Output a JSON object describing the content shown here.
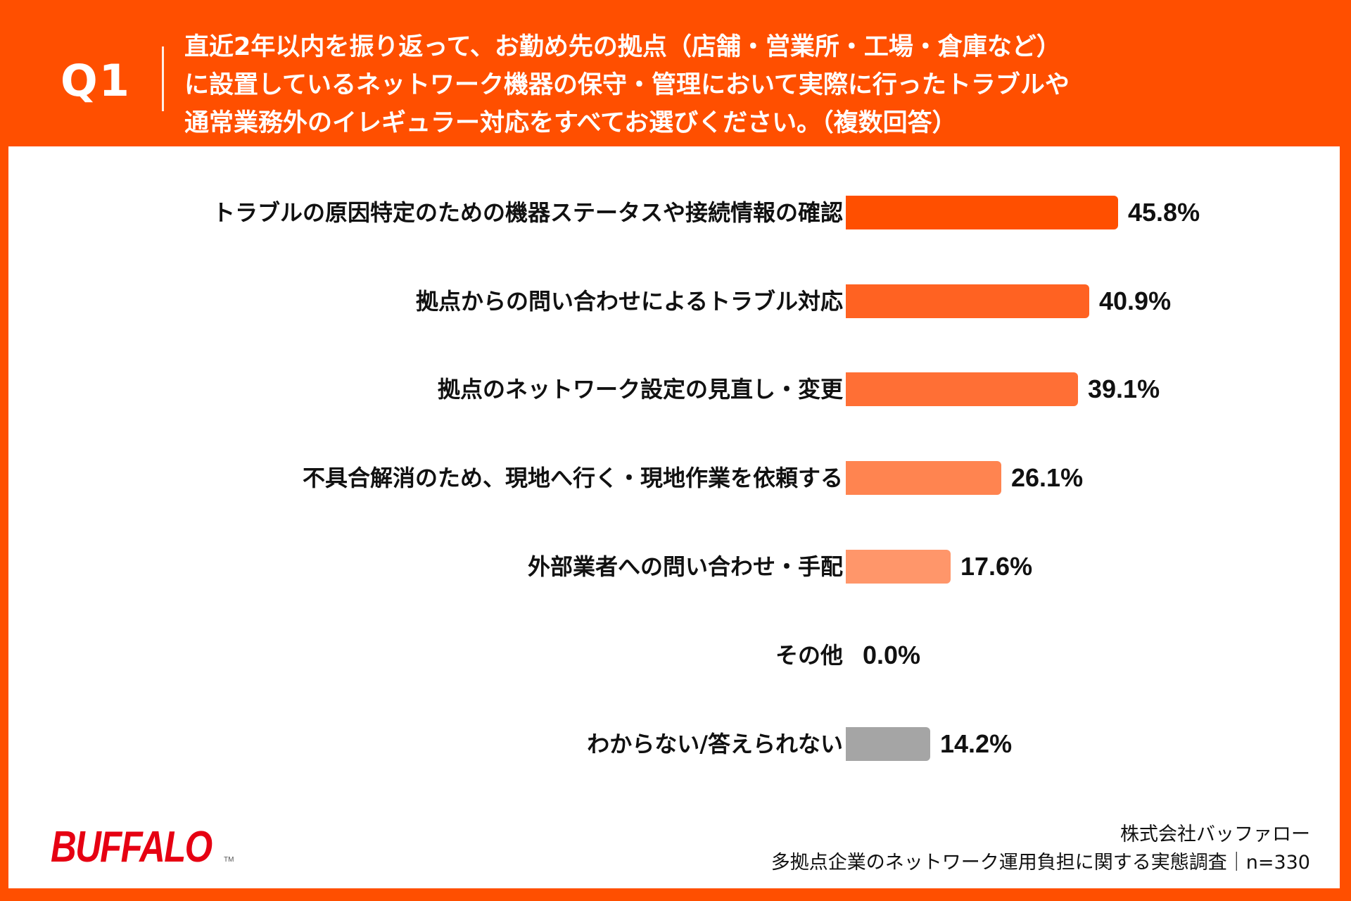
{
  "header": {
    "question_no": "Q1",
    "question_lines": [
      "直近2年以内を振り返って、お勤め先の拠点（店舗・営業所・工場・倉庫など）",
      "に設置しているネットワーク機器の保守・管理において実際に行ったトラブルや",
      "通常業務外のイレギュラー対応をすべてお選びください。（複数回答）"
    ]
  },
  "colors": {
    "frame": "#FF4F00",
    "bar_1": "#FF4F00",
    "bar_2": "#FF6222",
    "bar_3": "#FF6F35",
    "bar_4": "#FF8450",
    "bar_5": "#FF966A",
    "bar_other": "#FF966A",
    "bar_unknown": "#A5A5A5",
    "logo": "#E60012"
  },
  "chart_data": {
    "type": "bar",
    "orientation": "horizontal",
    "title": "直近2年以内を振り返って、お勤め先の拠点（店舗・営業所・工場・倉庫など）に設置しているネットワーク機器の保守・管理において実際に行ったトラブルや通常業務外のイレギュラー対応をすべてお選びください。（複数回答）",
    "categories": [
      "トラブルの原因特定のための機器ステータスや接続情報の確認",
      "拠点からの問い合わせによるトラブル対応",
      "拠点のネットワーク設定の見直し・変更",
      "不具合解消のため、現地へ行く・現地作業を依頼する",
      "外部業者への問い合わせ・手配",
      "その他",
      "わからない/答えられない"
    ],
    "values": [
      45.8,
      40.9,
      39.1,
      26.1,
      17.6,
      0.0,
      14.2
    ],
    "value_labels": [
      "45.8%",
      "40.9%",
      "39.1%",
      "26.1%",
      "17.6%",
      "0.0%",
      "14.2%"
    ],
    "unit": "%",
    "xlabel": "",
    "ylabel": "",
    "xlim": [
      0,
      100
    ],
    "grid": false,
    "legend": "none",
    "n": 330
  },
  "rows": [
    {
      "label": "トラブルの原因特定のための機器ステータスや接続情報の確認",
      "value": "45.8%",
      "pct": 45.8,
      "color": "#FF4F00"
    },
    {
      "label": "拠点からの問い合わせによるトラブル対応",
      "value": "40.9%",
      "pct": 40.9,
      "color": "#FF6222"
    },
    {
      "label": "拠点のネットワーク設定の見直し・変更",
      "value": "39.1%",
      "pct": 39.1,
      "color": "#FF6F35"
    },
    {
      "label": "不具合解消のため、現地へ行く・現地作業を依頼する",
      "value": "26.1%",
      "pct": 26.1,
      "color": "#FF8450"
    },
    {
      "label": "外部業者への問い合わせ・手配",
      "value": "17.6%",
      "pct": 17.6,
      "color": "#FF966A"
    },
    {
      "label": "その他",
      "value": "0.0%",
      "pct": 0.0,
      "color": "#FF966A"
    },
    {
      "label": "わからない/答えられない",
      "value": "14.2%",
      "pct": 14.2,
      "color": "#A5A5A5"
    }
  ],
  "footer": {
    "logo_text": "BUFFALO",
    "logo_tm": "TM",
    "company": "株式会社バッファロー",
    "survey": "多拠点企業のネットワーク運用負担に関する実態調査｜n=330"
  }
}
